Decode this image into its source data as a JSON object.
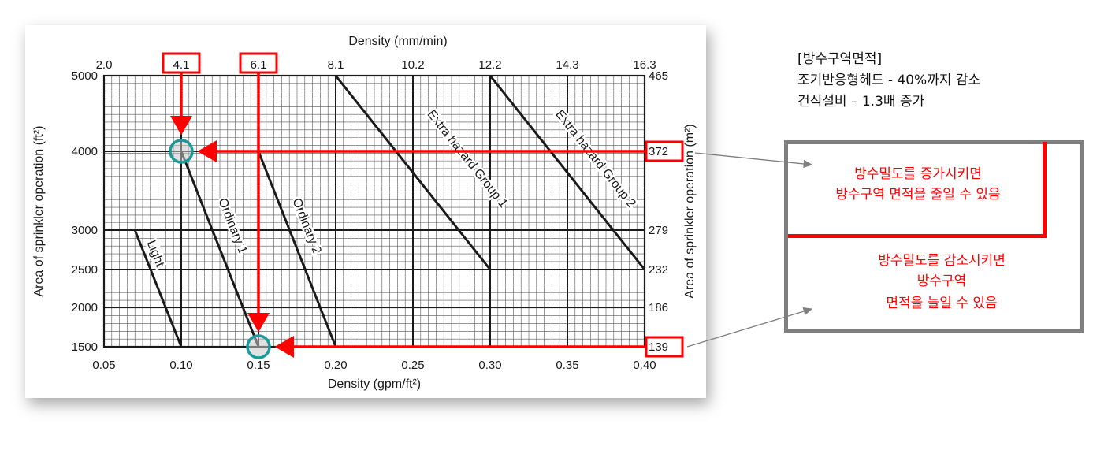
{
  "chart_data": {
    "type": "line",
    "x_bottom": {
      "label": "Density (gpm/ft²)",
      "min": 0.05,
      "max": 0.4,
      "ticks": [
        "0.05",
        "0.10",
        "0.15",
        "0.20",
        "0.25",
        "0.30",
        "0.35",
        "0.40"
      ]
    },
    "x_top": {
      "label": "Density (mm/min)",
      "ticks": [
        "2.0",
        "4.1",
        "6.1",
        "8.1",
        "10.2",
        "12.2",
        "14.3",
        "16.3"
      ]
    },
    "y_left": {
      "label": "Area of sprinkler operation (ft²)",
      "min": 1500,
      "max": 5000,
      "ticks": [
        "1500",
        "2000",
        "2500",
        "3000",
        "4000",
        "5000"
      ]
    },
    "y_right": {
      "label": "Area of sprinkler operation (m²)",
      "ticks": [
        "139",
        "186",
        "232",
        "279",
        "372",
        "465"
      ]
    },
    "grid": true,
    "series": [
      {
        "name": "Light",
        "points": [
          [
            0.07,
            3000
          ],
          [
            0.1,
            1500
          ]
        ]
      },
      {
        "name": "Ordinary 1",
        "points": [
          [
            0.1,
            4000
          ],
          [
            0.15,
            1500
          ]
        ]
      },
      {
        "name": "Ordinary 2",
        "points": [
          [
            0.15,
            4000
          ],
          [
            0.2,
            1500
          ]
        ]
      },
      {
        "name": "Extra hazard Group 1",
        "points": [
          [
            0.2,
            5000
          ],
          [
            0.3,
            2500
          ]
        ]
      },
      {
        "name": "Extra hazard Group 2",
        "points": [
          [
            0.3,
            5000
          ],
          [
            0.4,
            2500
          ]
        ]
      }
    ],
    "annotations": {
      "highlighted_top_ticks": [
        "4.1",
        "6.1"
      ],
      "highlighted_right_ticks": [
        "372",
        "139"
      ],
      "markers": [
        [
          0.1,
          4000
        ],
        [
          0.15,
          1500
        ]
      ]
    }
  },
  "notes": {
    "title": "[방수구역면적]",
    "line1": "조기반응형헤드 - 40%까지 감소",
    "line2": "건식설비 – 1.3배 증가"
  },
  "callouts": {
    "increase_line1": "방수밀도를 증가시키면",
    "increase_line2": "방수구역 면적을 줄일 수 있음",
    "decrease_line1": "방수밀도를 감소시키면",
    "decrease_line2": "방수구역",
    "decrease_line3": "면적을 늘일 수 있음"
  },
  "colors": {
    "accent": "#ff0000",
    "marker": "#1a9a98",
    "box_border": "#7f7f7f",
    "line": "#1a1a1a"
  }
}
